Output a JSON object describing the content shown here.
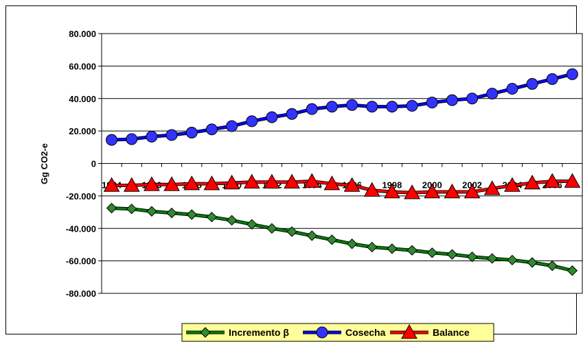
{
  "chart_data": {
    "type": "line",
    "title": "",
    "xlabel": "",
    "ylabel": "Gg CO2-e",
    "ylim": [
      -80000,
      80000
    ],
    "y_ticks": [
      80000,
      60000,
      40000,
      20000,
      0,
      -20000,
      -40000,
      -60000,
      -80000
    ],
    "y_tick_labels": [
      "80.000",
      "60.000",
      "40.000",
      "20.000",
      "0",
      "-20.000",
      "-40.000",
      "-60.000",
      "-80.000"
    ],
    "x": [
      1984,
      1985,
      1986,
      1987,
      1988,
      1989,
      1990,
      1991,
      1992,
      1993,
      1994,
      1995,
      1996,
      1997,
      1998,
      1999,
      2000,
      2001,
      2002,
      2003,
      2004,
      2005,
      2006,
      2007
    ],
    "x_tick_labels": [
      "1984",
      "1986",
      "1988",
      "1990",
      "1992",
      "1994",
      "1996",
      "1998",
      "2000",
      "2002",
      "2004",
      "2006"
    ],
    "x_tick_label_years": [
      1984,
      1986,
      1988,
      1990,
      1992,
      1994,
      1996,
      1998,
      2000,
      2002,
      2004,
      2006
    ],
    "grid": "horizontal",
    "legend_position": "bottom",
    "series": [
      {
        "name": "Incremento β",
        "color": "#008000",
        "marker": "diamond",
        "marker_color": "#2e8b2e",
        "values": [
          -27500,
          -28000,
          -29500,
          -30500,
          -31500,
          -33000,
          -35000,
          -37500,
          -40000,
          -42000,
          -44500,
          -47000,
          -49500,
          -51500,
          -52500,
          -53500,
          -55000,
          -56000,
          -57500,
          -58500,
          -59500,
          -61000,
          -63000,
          -66000
        ]
      },
      {
        "name": "Cosecha",
        "color": "#0000ff",
        "marker": "circle",
        "marker_color": "#3333ff",
        "values": [
          14500,
          15000,
          16500,
          17500,
          19000,
          21000,
          23000,
          26000,
          28500,
          30500,
          33500,
          35000,
          36000,
          35000,
          35000,
          35500,
          37500,
          39000,
          40000,
          43000,
          46000,
          49000,
          52000,
          55000
        ]
      },
      {
        "name": "Balance",
        "color": "#ff0000",
        "marker": "triangle",
        "marker_color": "#ff0000",
        "values": [
          -13500,
          -13500,
          -13000,
          -13000,
          -12500,
          -12500,
          -12000,
          -11500,
          -11500,
          -11500,
          -11000,
          -12500,
          -13500,
          -16500,
          -17500,
          -18000,
          -17500,
          -17500,
          -17500,
          -15500,
          -13500,
          -12000,
          -11000,
          -11000
        ]
      }
    ]
  }
}
